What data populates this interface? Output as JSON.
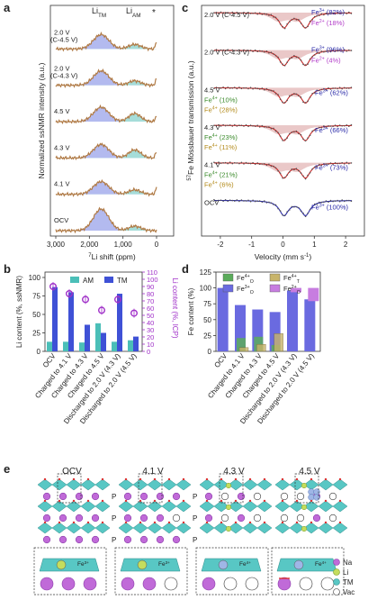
{
  "panel_a": {
    "letter": "a",
    "ylabel": "Normalized ssNMR intensity (a.u.)",
    "xlabel": "7Li shift (ppm)",
    "peak_tm": "Li",
    "peak_tm_sub": "TM",
    "peak_am": "Li",
    "peak_am_sub": "AM",
    "star": "*",
    "traces": [
      "2.0 V (C-4.5 V)",
      "2.0 V (C-4.3 V)",
      "4.5 V",
      "4.3 V",
      "4.1 V",
      "OCV"
    ],
    "xticks": [
      "3,000",
      "2,000",
      "1,000",
      "0"
    ]
  },
  "panel_c": {
    "letter": "c",
    "ylabel": "57Fe Mössbauer transmission (a.u.)",
    "xlabel": "Velocity (mm s-1)",
    "xticks": [
      "-2",
      "-1",
      "0",
      "1",
      "2"
    ],
    "traces": [
      {
        "label": "2.0 V (C-4.5 V)",
        "fe3": "Fe3+ (82%)",
        "fe2": "Fe2+ (18%)"
      },
      {
        "label": "2.0 V (C-4.3 V)",
        "fe3": "Fe3+ (96%)",
        "fe2": "Fe2+ (4%)"
      },
      {
        "label": "4.5 V",
        "fe3": "Fe3+ (62%)",
        "fe4o": "Fe4+ (10%)",
        "fe4t": "Fe4+ (28%)"
      },
      {
        "label": "4.3 V",
        "fe3": "Fe3+ (66%)",
        "fe4o": "Fe4+ (23%)",
        "fe4t": "Fe4+ (11%)"
      },
      {
        "label": "4.1 V",
        "fe3": "Fe3+ (73%)",
        "fe4o": "Fe4+ (21%)",
        "fe4t": "Fe4+ (6%)"
      },
      {
        "label": "OCV",
        "fe3": "Fe3+ (100%)"
      }
    ],
    "colors": {
      "fe3": "#2a2aa8",
      "fe2": "#b23cc8",
      "fe4o": "#3a8a2a",
      "fe4t": "#b38a1a"
    }
  },
  "panel_b": {
    "letter": "b",
    "ylabel_left": "Li content (%, ssNMR)",
    "ylabel_right": "Li content (%, ICP)",
    "legend": [
      "AM",
      "TM"
    ],
    "colors": {
      "AM": "#4bbfb8",
      "TM": "#3f51d6",
      "ICP": "#a030c8"
    }
  },
  "panel_d": {
    "letter": "d",
    "ylabel": "Fe content (%)",
    "legend": [
      "Fe4+ O",
      "Fe4+ T",
      "Fe3+ O",
      "Fe2+ O"
    ],
    "colors": {
      "fe4o": "#5aab5a",
      "fe4t": "#c8b46a",
      "fe3": "#6a6ae0",
      "fe2": "#c77de0"
    }
  },
  "categories": [
    "OCV",
    "Charged to 4.1 V",
    "Charged to 4.3 V",
    "Charged to 4.5 V",
    "Discharged to 2.0 V (4.3 V)",
    "Discharged to 2.0 V (4.5 V)"
  ],
  "chart_data": [
    {
      "type": "bar",
      "title": "",
      "categories": [
        "OCV",
        "Charged to 4.1 V",
        "Charged to 4.3 V",
        "Charged to 4.5 V",
        "Discharged to 2.0 V (4.3 V)",
        "Discharged to 2.0 V (4.5 V)"
      ],
      "series": [
        {
          "name": "AM",
          "values": [
            13,
            13,
            12,
            38,
            13,
            15
          ]
        },
        {
          "name": "TM",
          "values": [
            87,
            80,
            36,
            25,
            78,
            20
          ]
        }
      ],
      "icp_values": [
        90,
        80,
        72,
        57,
        72,
        53
      ],
      "ylabel": "Li content (%, ssNMR)",
      "y2label": "Li content (%, ICP)",
      "ylim": [
        0,
        100
      ],
      "y2lim": [
        0,
        110
      ],
      "yticks": [
        0,
        25,
        50,
        75,
        100
      ],
      "y2ticks": [
        0,
        10,
        20,
        30,
        40,
        50,
        60,
        70,
        80,
        90,
        100,
        110
      ]
    },
    {
      "type": "bar",
      "title": "",
      "categories": [
        "OCV",
        "Charged to 4.1 V",
        "Charged to 4.3 V",
        "Charged to 4.5 V",
        "Discharged to 2.0 V (4.3 V)",
        "Discharged to 2.0 V (4.5 V)"
      ],
      "series": [
        {
          "name": "Fe3+ O",
          "values": [
            100,
            73,
            66,
            62,
            96,
            82
          ]
        },
        {
          "name": "Fe4+ O",
          "values": [
            0,
            21,
            23,
            10,
            0,
            0
          ]
        },
        {
          "name": "Fe4+ T",
          "values": [
            0,
            6,
            11,
            28,
            0,
            0
          ]
        },
        {
          "name": "Fe2+ O",
          "values": [
            0,
            0,
            0,
            0,
            4,
            18
          ]
        }
      ],
      "ylabel": "Fe content (%)",
      "ylim": [
        0,
        125
      ],
      "yticks": [
        0,
        25,
        50,
        75,
        100,
        125
      ]
    }
  ],
  "panel_e": {
    "letter": "e",
    "states": [
      "OCV",
      "4.1 V",
      "4.3 V",
      "4.5 V"
    ],
    "p_label": "P",
    "legend": [
      "Na",
      "Li",
      "TM",
      "Vac"
    ],
    "inset_labels": [
      "Fe3+",
      "Fe3+",
      "Fe4+",
      "Fe4+"
    ]
  }
}
